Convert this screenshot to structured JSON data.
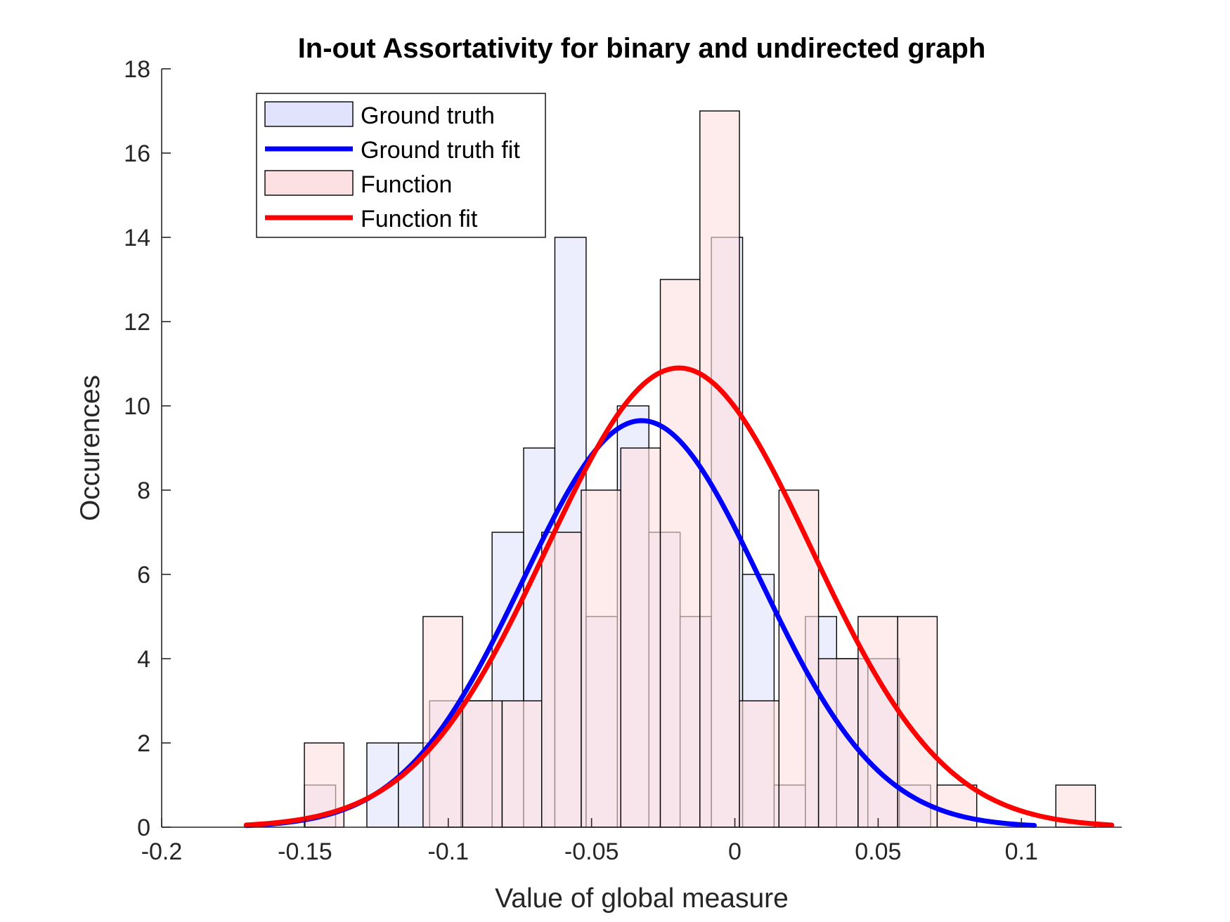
{
  "chart_data": {
    "type": "bar",
    "title": "In-out Assortativity for binary and undirected graph",
    "xlabel": "Value of global measure",
    "ylabel": "Occurences",
    "xlim": [
      -0.2,
      0.135
    ],
    "ylim": [
      0,
      18
    ],
    "xticks": [
      -0.2,
      -0.15,
      -0.1,
      -0.05,
      0,
      0.05,
      0.1
    ],
    "xtick_labels": [
      "-0.2",
      "-0.15",
      "-0.1",
      "-0.05",
      "0",
      "0.05",
      "0.1"
    ],
    "yticks": [
      0,
      2,
      4,
      6,
      8,
      10,
      12,
      14,
      16,
      18
    ],
    "ytick_labels": [
      "0",
      "2",
      "4",
      "6",
      "8",
      "10",
      "12",
      "14",
      "16",
      "18"
    ],
    "legend_position": "top-left",
    "series": [
      {
        "name": "Ground truth",
        "kind": "histogram",
        "color": "#e1e2fb",
        "edge_color": "#000000",
        "bin_edges": [
          -0.1502,
          -0.1393,
          -0.1284,
          -0.1174,
          -0.1065,
          -0.0956,
          -0.0847,
          -0.0737,
          -0.0628,
          -0.0519,
          -0.041,
          -0.03,
          -0.0191,
          -0.0082,
          0.0027,
          0.0137,
          0.0246,
          0.0355,
          0.0464,
          0.0574,
          0.0683
        ],
        "counts": [
          1,
          0,
          2,
          2,
          3,
          3,
          7,
          9,
          14,
          5,
          10,
          7,
          5,
          14,
          6,
          1,
          5,
          4,
          4,
          1
        ]
      },
      {
        "name": "Ground truth fit",
        "kind": "line",
        "color": "#0000ff",
        "fit": "normal",
        "mu": -0.0325,
        "peak": 9.65,
        "sigma": 0.0415,
        "x_range": [
          -0.1705,
          0.1045
        ]
      },
      {
        "name": "Function",
        "kind": "histogram",
        "color": "#fde0e1",
        "edge_color": "#000000",
        "bin_edges": [
          -0.1502,
          -0.1364,
          -0.1226,
          -0.1088,
          -0.095,
          -0.0812,
          -0.0674,
          -0.0536,
          -0.0398,
          -0.026,
          -0.0122,
          0.0016,
          0.0154,
          0.0292,
          0.043,
          0.0568,
          0.0706,
          0.0844,
          0.0982,
          0.112,
          0.1258
        ],
        "counts": [
          2,
          0,
          0,
          5,
          3,
          3,
          7,
          8,
          9,
          13,
          17,
          3,
          8,
          4,
          5,
          5,
          1,
          0,
          0,
          1
        ]
      },
      {
        "name": "Function fit",
        "kind": "line",
        "color": "#ff0000",
        "fit": "normal",
        "mu": -0.0195,
        "peak": 10.9,
        "sigma": 0.0462,
        "x_range": [
          -0.1705,
          0.1315
        ]
      }
    ]
  }
}
